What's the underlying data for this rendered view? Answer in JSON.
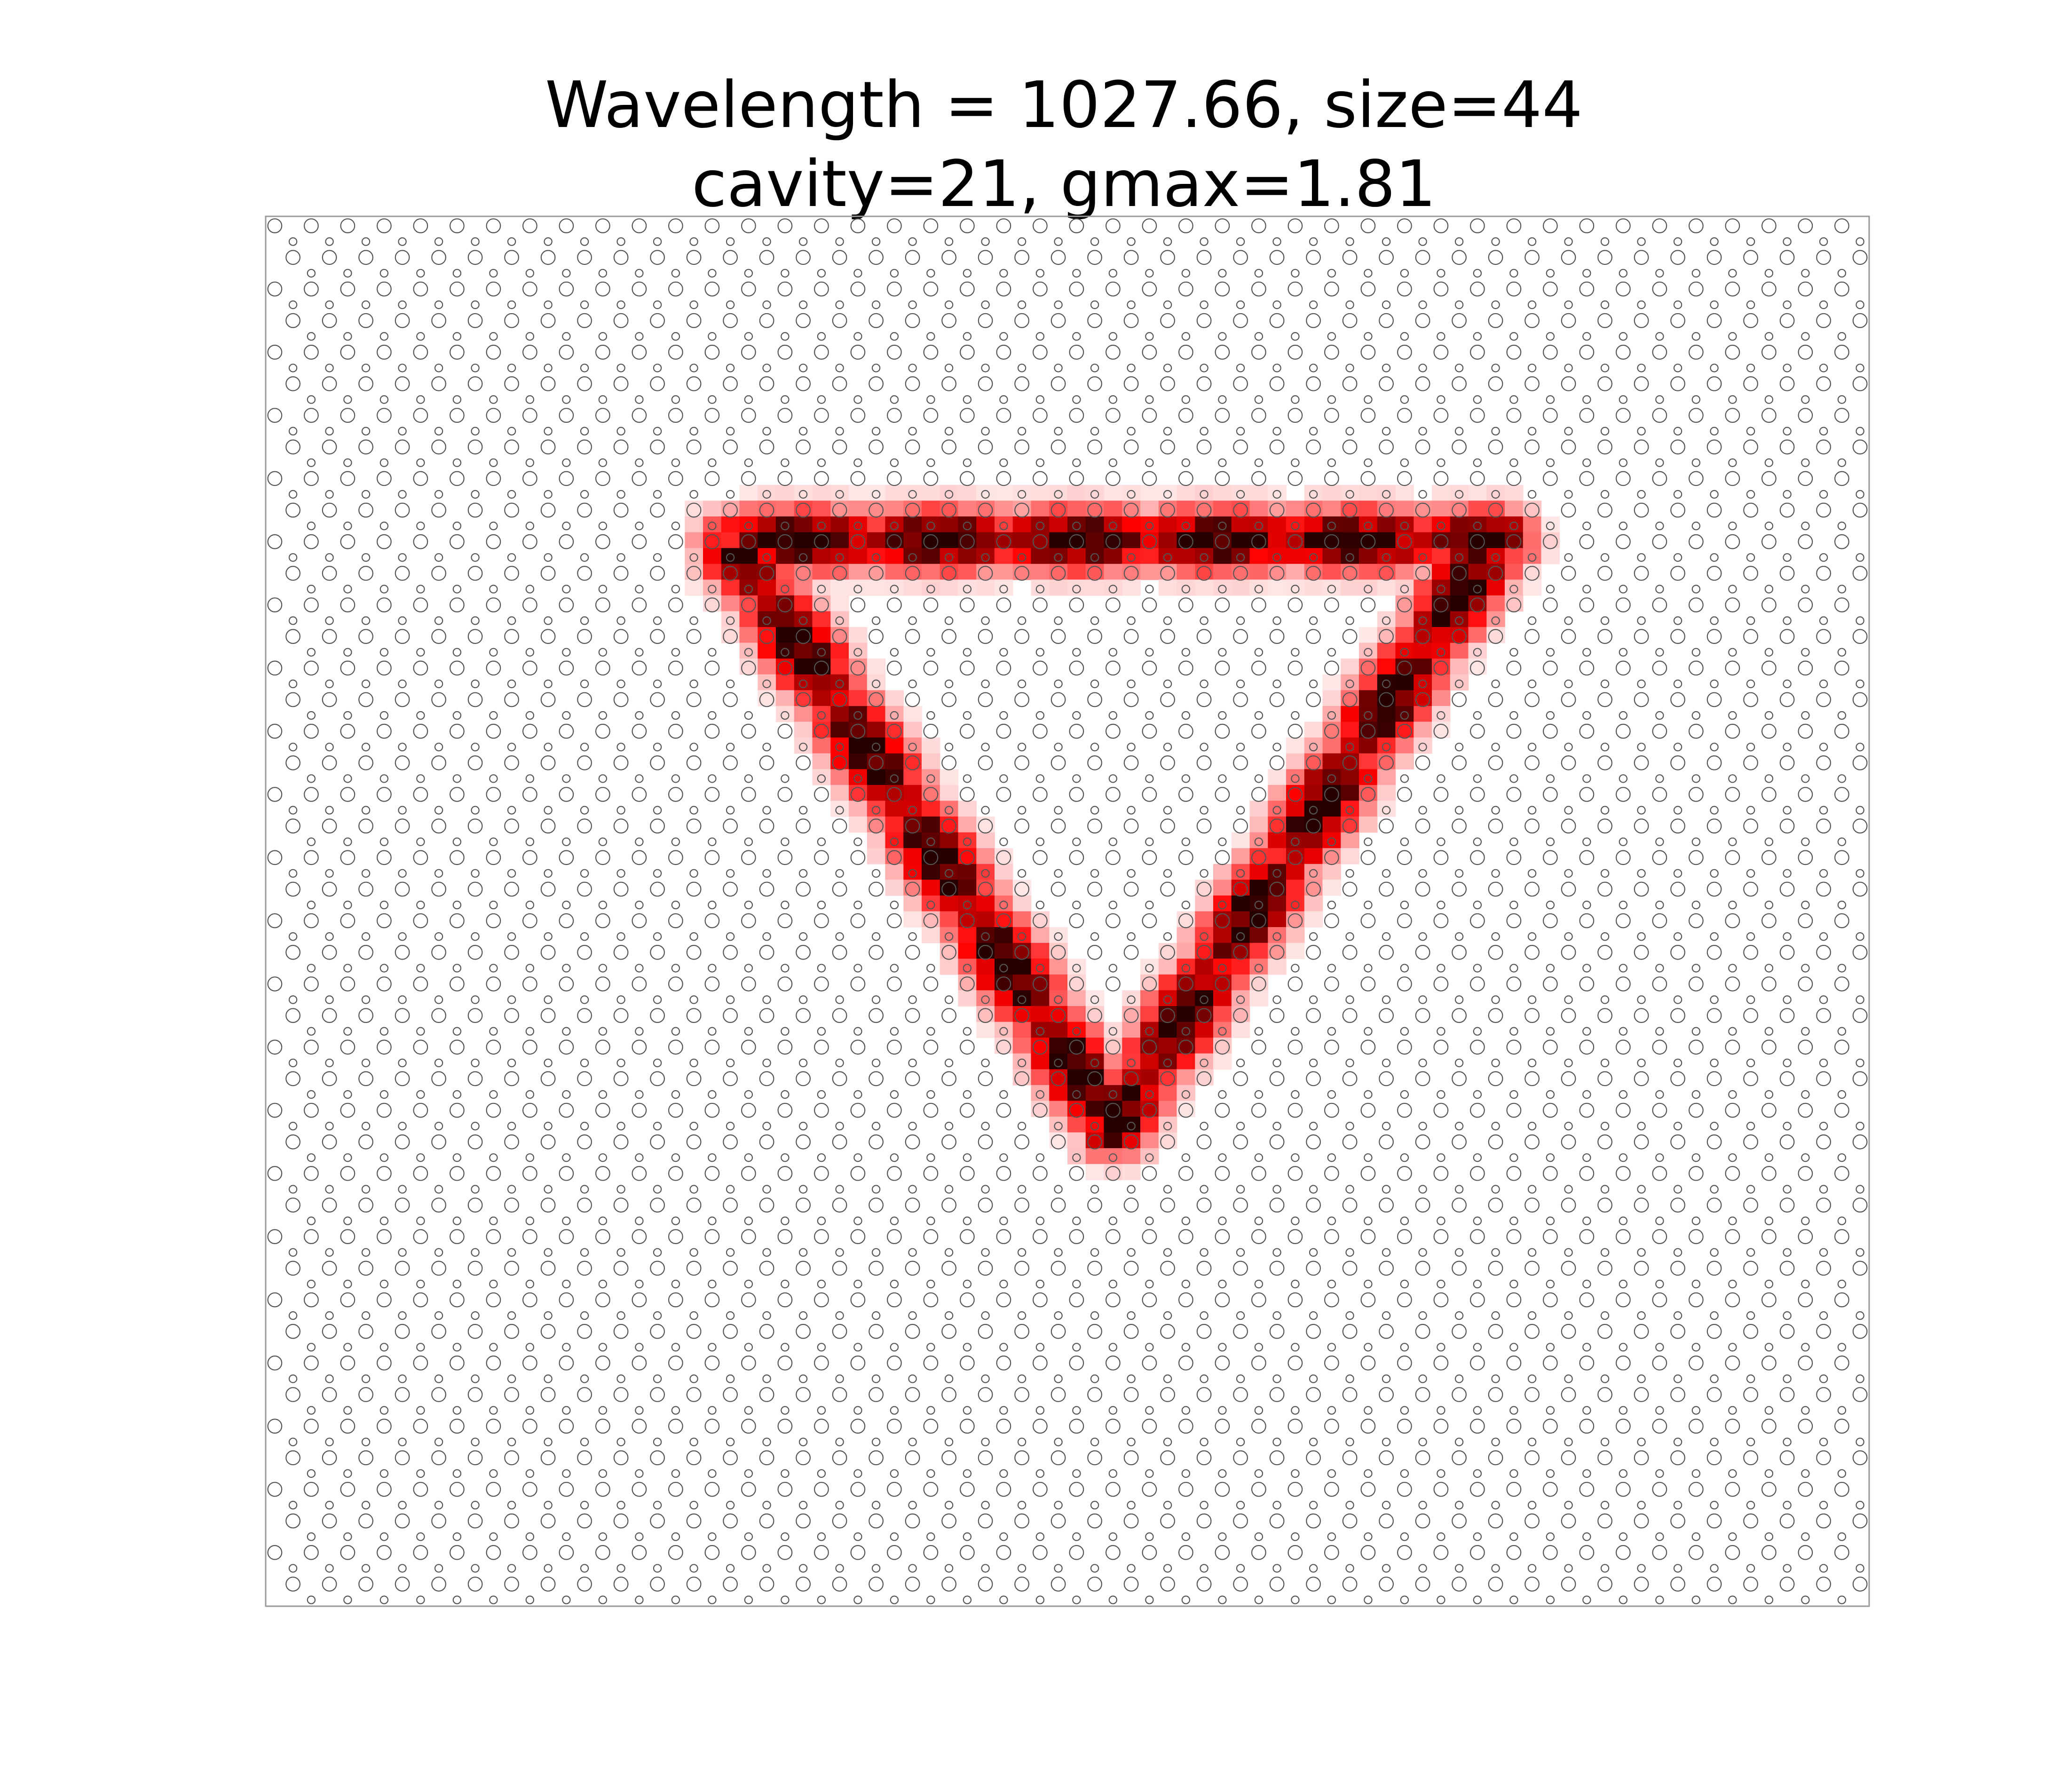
{
  "chart_data": {
    "type": "heatmap",
    "title": "Wavelength = 1027.66, size=44",
    "subtitle": "cavity=21, gmax=1.81",
    "xlabel": "",
    "ylabel": "",
    "axes_visible": false,
    "grid": false,
    "legend": "none",
    "lattice": {
      "description": "triangular photonic-crystal lattice of air holes (two hole sizes)",
      "columns": 44,
      "rows": 44,
      "hole_ratio_small_to_large": 0.55
    },
    "field_mode": {
      "shape": "triangular ring (inverted triangle)",
      "triangle_vertices_data": [
        [
          12.5,
          10.0
        ],
        [
          33.5,
          10.0
        ],
        [
          23.0,
          28.5
        ]
      ],
      "peak_intensity": 1.0
    },
    "colors": {
      "frame": "#999999",
      "holes": "#555555",
      "field_low": "#ffffff",
      "field_mid": "#ff0000",
      "field_high": "#000000"
    }
  }
}
